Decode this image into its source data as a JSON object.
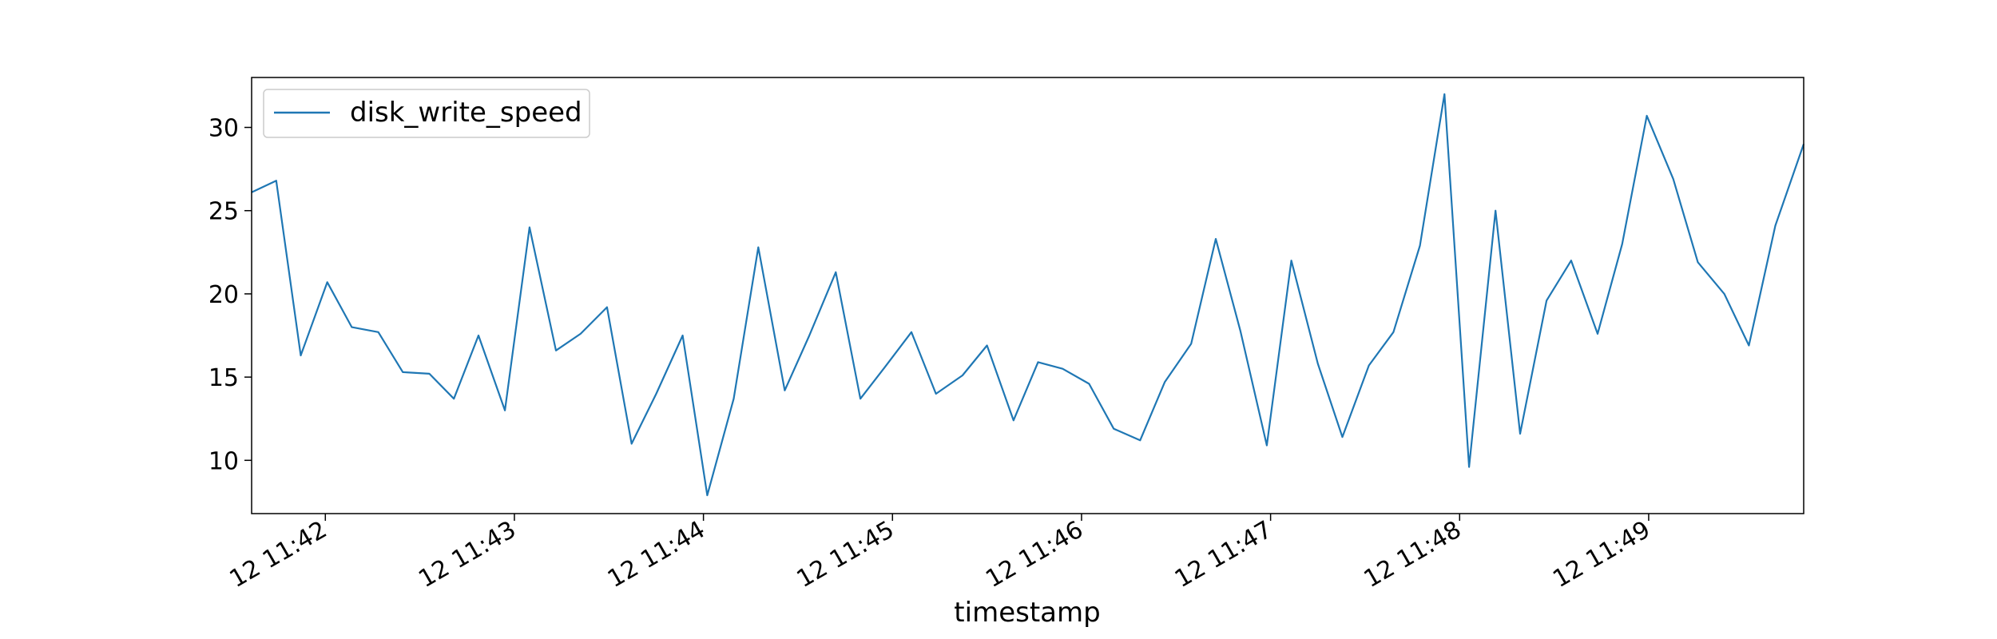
{
  "chart_data": {
    "type": "line",
    "title": "",
    "xlabel": "timestamp",
    "ylabel": "",
    "x_tick_labels": [
      "12 11:42",
      "12 11:43",
      "12 11:44",
      "12 11:45",
      "12 11:46",
      "12 11:47",
      "12 11:48",
      "12 11:49"
    ],
    "x_tick_minutes": [
      42,
      43,
      44,
      45,
      46,
      47,
      48,
      49
    ],
    "x_range_minutes": [
      41.61,
      49.82
    ],
    "y_ticks": [
      10,
      15,
      20,
      25,
      30
    ],
    "ylim": [
      6.8,
      33.0
    ],
    "grid": false,
    "legend_position": "top-left",
    "series": [
      {
        "name": "disk_write_speed",
        "color": "#1f77b4",
        "x_minutes": [
          41.61,
          41.74,
          41.87,
          42.01,
          42.14,
          42.28,
          42.41,
          42.55,
          42.68,
          42.81,
          42.95,
          43.08,
          43.22,
          43.35,
          43.49,
          43.62,
          43.75,
          43.89,
          44.02,
          44.16,
          44.29,
          44.43,
          44.56,
          44.7,
          44.83,
          44.96,
          45.1,
          45.23,
          45.37,
          45.5,
          45.64,
          45.77,
          45.9,
          46.04,
          46.17,
          46.31,
          46.44,
          46.58,
          46.71,
          46.84,
          46.98,
          47.11,
          47.25,
          47.38,
          47.52,
          47.65,
          47.79,
          47.92,
          48.05,
          48.19,
          48.32,
          48.46,
          48.59,
          48.73,
          48.86,
          48.99,
          49.13,
          49.26,
          49.4,
          49.53,
          49.67,
          49.82
        ],
        "values": [
          26.1,
          26.8,
          16.3,
          20.7,
          18.0,
          17.7,
          15.3,
          15.2,
          13.7,
          17.5,
          13.0,
          24.0,
          16.6,
          17.6,
          19.2,
          11.0,
          14.0,
          17.5,
          7.9,
          13.7,
          22.8,
          14.2,
          17.5,
          21.3,
          13.7,
          15.6,
          17.7,
          14.0,
          15.1,
          16.9,
          12.4,
          15.9,
          15.5,
          14.6,
          11.9,
          11.2,
          14.7,
          17.0,
          23.3,
          17.8,
          10.9,
          22.0,
          15.8,
          11.4,
          15.7,
          17.7,
          22.9,
          32.0,
          9.6,
          25.0,
          11.6,
          19.6,
          22.0,
          17.6,
          23.0,
          30.7,
          26.9,
          21.9,
          20.0,
          16.9,
          24.1,
          29.0
        ]
      }
    ]
  }
}
